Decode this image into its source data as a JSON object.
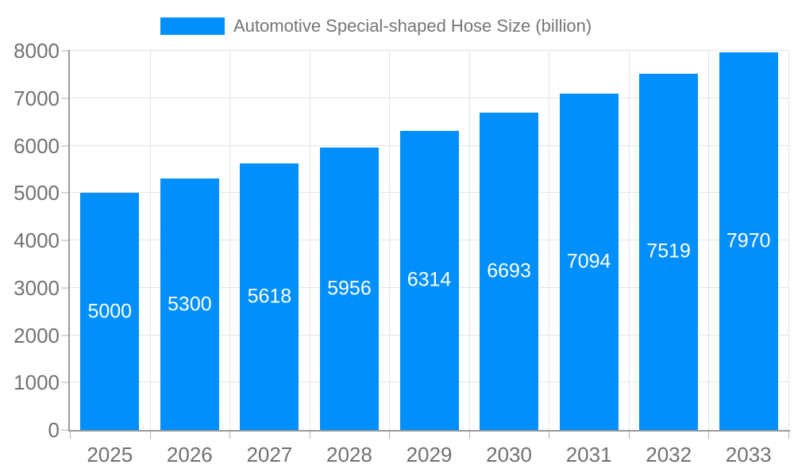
{
  "chart_data": {
    "type": "bar",
    "title": "",
    "xlabel": "",
    "ylabel": "",
    "categories": [
      "2025",
      "2026",
      "2027",
      "2028",
      "2029",
      "2030",
      "2031",
      "2032",
      "2033"
    ],
    "series": [
      {
        "name": "Automotive Special-shaped Hose Size (billion)",
        "color": "#008FFB",
        "values": [
          5000,
          5300,
          5618,
          5956,
          6314,
          6693,
          7094,
          7519,
          7970
        ]
      }
    ],
    "bar_value_labels": [
      "5000",
      "5300",
      "5618",
      "5956",
      "6314",
      "6693",
      "7094",
      "7519",
      "7970"
    ],
    "ylim": [
      0,
      8000
    ],
    "yticks": [
      0,
      1000,
      2000,
      3000,
      4000,
      5000,
      6000,
      7000,
      8000
    ],
    "grid": true,
    "legend_position": "top-center"
  },
  "colors": {
    "bar": "#008FFB",
    "bar_label": "#ffffff",
    "grid_line": "#e4e4e4",
    "axis_line": "#9a9a9a",
    "tick_mark": "#b0b0b0",
    "tick_text": "#717171",
    "legend_text": "#757575",
    "background": "#ffffff"
  }
}
